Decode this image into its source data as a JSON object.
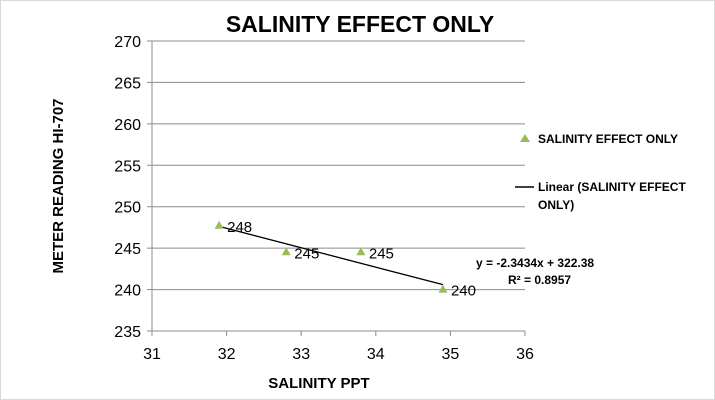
{
  "chart_data": {
    "type": "scatter",
    "title": "SALINITY EFFECT ONLY",
    "xlabel": "SALINITY PPT",
    "ylabel": "METER READING HI-707",
    "xlim": [
      31,
      36
    ],
    "ylim": [
      235,
      270
    ],
    "x_ticks": [
      "31",
      "32",
      "33",
      "34",
      "35",
      "36"
    ],
    "y_ticks": [
      "235",
      "240",
      "245",
      "250",
      "255",
      "260",
      "265",
      "270"
    ],
    "grid": "horizontal",
    "legend_position": "right",
    "series": [
      {
        "name": "SALINITY EFFECT ONLY",
        "marker": "triangle",
        "color": "#9bbb59",
        "points": [
          {
            "x": 31.9,
            "y": 247.7,
            "label": "248"
          },
          {
            "x": 32.8,
            "y": 244.5,
            "label": "245"
          },
          {
            "x": 33.8,
            "y": 244.5,
            "label": "245"
          },
          {
            "x": 34.9,
            "y": 240.0,
            "label": "240"
          }
        ]
      }
    ],
    "trendline": {
      "name_lines": [
        "Linear (SALINITY EFFECT",
        "ONLY)"
      ],
      "slope": -2.3434,
      "intercept": 322.38,
      "x_range": [
        31.9,
        34.9
      ],
      "color": "#000000",
      "equation": "y = -2.3434x + 322.38",
      "r_squared": "R² = 0.8957"
    }
  }
}
